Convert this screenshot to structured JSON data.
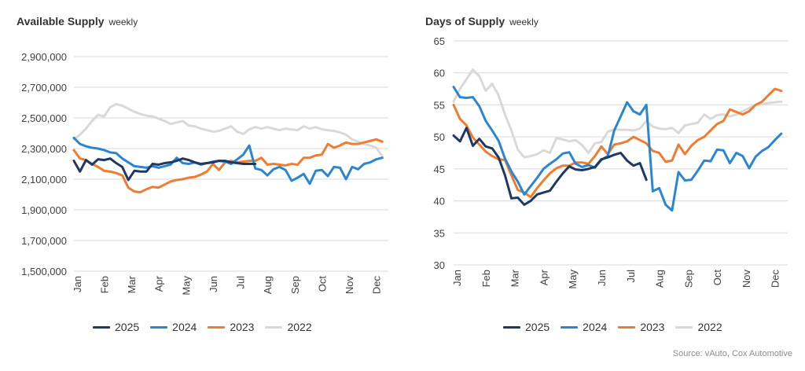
{
  "source": "Source: vAuto, Cox Automotive",
  "chart_data": [
    {
      "type": "line",
      "title": "Available Supply",
      "subtitle": "weekly",
      "ylim": [
        1500000,
        2900000
      ],
      "yticks": [
        1500000,
        1700000,
        1900000,
        2100000,
        2300000,
        2500000,
        2700000,
        2900000
      ],
      "ytick_labels": [
        "1,500,000",
        "1,700,000",
        "1,900,000",
        "2,100,000",
        "2,300,000",
        "2,500,000",
        "2,700,000",
        "2,900,000"
      ],
      "xlim": [
        0,
        52
      ],
      "x_tick_labels": [
        "Jan",
        "Feb",
        "Mar",
        "Apr",
        "May",
        "Jun",
        "Jul",
        "Aug",
        "Sep",
        "Oct",
        "Nov",
        "Dec"
      ],
      "x_label_weeks": [
        0.5,
        5,
        9.5,
        14,
        18.5,
        23,
        27.5,
        32,
        36.5,
        41,
        45.5,
        50
      ],
      "grid": true,
      "series": [
        {
          "name": "2025",
          "color": "#1f3864",
          "values": [
            2220000,
            2150000,
            2225000,
            2195000,
            2230000,
            2225000,
            2235000,
            2205000,
            2180000,
            2095000,
            2155000,
            2150000,
            2150000,
            2200000,
            2195000,
            2205000,
            2210000,
            2220000,
            2235000,
            2225000,
            2210000,
            2200000,
            2205000,
            2210000,
            2220000,
            2220000,
            2210000,
            2205000,
            2200000,
            2200000,
            2200000
          ]
        },
        {
          "name": "2024",
          "color": "#2b86d1",
          "values": [
            2370000,
            2330000,
            2315000,
            2305000,
            2300000,
            2290000,
            2275000,
            2270000,
            2235000,
            2210000,
            2185000,
            2180000,
            2175000,
            2185000,
            2175000,
            2185000,
            2195000,
            2240000,
            2205000,
            2200000,
            2210000,
            2195000,
            2205000,
            2215000,
            2220000,
            2215000,
            2200000,
            2230000,
            2260000,
            2320000,
            2170000,
            2160000,
            2125000,
            2165000,
            2180000,
            2160000,
            2090000,
            2110000,
            2135000,
            2070000,
            2155000,
            2160000,
            2120000,
            2180000,
            2175000,
            2100000,
            2180000,
            2165000,
            2200000,
            2210000,
            2230000,
            2240000
          ]
        },
        {
          "name": "2023",
          "color": "#ee7d31",
          "values": [
            2290000,
            2235000,
            2225000,
            2200000,
            2180000,
            2155000,
            2150000,
            2140000,
            2125000,
            2045000,
            2020000,
            2015000,
            2035000,
            2050000,
            2045000,
            2065000,
            2085000,
            2095000,
            2100000,
            2110000,
            2115000,
            2130000,
            2150000,
            2200000,
            2160000,
            2210000,
            2220000,
            2210000,
            2215000,
            2220000,
            2220000,
            2240000,
            2195000,
            2200000,
            2195000,
            2190000,
            2200000,
            2195000,
            2240000,
            2240000,
            2255000,
            2260000,
            2330000,
            2305000,
            2320000,
            2340000,
            2330000,
            2330000,
            2340000,
            2350000,
            2360000,
            2345000
          ]
        },
        {
          "name": "2022",
          "color": "#d9d9d9",
          "values": [
            2360000,
            2390000,
            2430000,
            2480000,
            2520000,
            2510000,
            2570000,
            2590000,
            2580000,
            2560000,
            2540000,
            2525000,
            2515000,
            2510000,
            2495000,
            2480000,
            2460000,
            2470000,
            2480000,
            2450000,
            2445000,
            2430000,
            2420000,
            2410000,
            2415000,
            2430000,
            2445000,
            2410000,
            2395000,
            2425000,
            2440000,
            2430000,
            2440000,
            2430000,
            2420000,
            2430000,
            2425000,
            2420000,
            2445000,
            2430000,
            2440000,
            2425000,
            2420000,
            2415000,
            2405000,
            2390000,
            2360000,
            2345000,
            2330000,
            2320000,
            2305000,
            2250000
          ]
        }
      ]
    },
    {
      "type": "line",
      "title": "Days of Supply",
      "subtitle": "weekly",
      "ylim": [
        30,
        65
      ],
      "yticks": [
        30,
        35,
        40,
        45,
        50,
        55,
        60,
        65
      ],
      "ytick_labels": [
        "30",
        "35",
        "40",
        "45",
        "50",
        "55",
        "60",
        "65"
      ],
      "xlim": [
        0,
        52
      ],
      "x_tick_labels": [
        "Jan",
        "Feb",
        "Mar",
        "Apr",
        "May",
        "Jun",
        "Jul",
        "Aug",
        "Sep",
        "Oct",
        "Nov",
        "Dec"
      ],
      "x_label_weeks": [
        0.5,
        5,
        9.5,
        14,
        18.5,
        23,
        27.5,
        32,
        36.5,
        41,
        45.5,
        50
      ],
      "grid": true,
      "series": [
        {
          "name": "2025",
          "color": "#1f3864",
          "values": [
            50.2,
            49.3,
            51.4,
            48.6,
            49.7,
            48.5,
            48.2,
            46.8,
            44.0,
            40.4,
            40.5,
            39.4,
            40.0,
            41.0,
            41.3,
            41.6,
            43.0,
            44.3,
            45.4,
            44.9,
            44.8,
            45.0,
            45.3,
            46.5,
            46.8,
            47.2,
            47.5,
            46.3,
            45.5,
            45.9,
            43.3
          ]
        },
        {
          "name": "2024",
          "color": "#2b86d1",
          "values": [
            57.8,
            56.2,
            56.1,
            56.2,
            54.8,
            52.5,
            51.0,
            49.4,
            46.6,
            44.6,
            43.0,
            41.0,
            42.3,
            43.6,
            45.0,
            45.8,
            46.5,
            47.4,
            47.6,
            45.8,
            45.3,
            45.6,
            45.2,
            46.4,
            47.0,
            51.0,
            53.2,
            55.4,
            54.0,
            53.5,
            55.0,
            41.5,
            42.0,
            39.4,
            38.5,
            44.5,
            43.2,
            43.3,
            44.7,
            46.3,
            46.2,
            48.0,
            47.9,
            45.9,
            47.5,
            47.0,
            45.1,
            46.9,
            47.8,
            48.4,
            49.5,
            50.5
          ]
        },
        {
          "name": "2023",
          "color": "#ee7d31",
          "values": [
            55.0,
            52.8,
            51.8,
            49.9,
            48.8,
            47.7,
            47.0,
            46.5,
            46.4,
            44.0,
            41.7,
            41.3,
            40.6,
            42.0,
            43.2,
            44.3,
            45.1,
            45.5,
            45.5,
            46.0,
            46.0,
            45.8,
            47.0,
            48.5,
            47.3,
            48.8,
            49.0,
            49.3,
            50.0,
            49.5,
            49.0,
            47.8,
            47.5,
            46.1,
            46.3,
            48.8,
            47.3,
            48.6,
            49.5,
            50.0,
            51.0,
            52.0,
            52.5,
            54.3,
            53.9,
            53.5,
            54.0,
            55.0,
            55.5,
            56.5,
            57.5,
            57.2
          ]
        },
        {
          "name": "2022",
          "color": "#d9d9d9",
          "values": [
            55.5,
            57.5,
            59.0,
            60.5,
            59.5,
            57.2,
            58.3,
            56.5,
            53.5,
            51.0,
            48.0,
            46.8,
            47.0,
            47.3,
            47.9,
            47.5,
            49.8,
            49.6,
            49.3,
            49.5,
            48.7,
            47.5,
            49.0,
            49.2,
            50.8,
            51.2,
            51.1,
            51.1,
            51.0,
            51.3,
            52.5,
            51.6,
            51.3,
            51.2,
            51.4,
            50.6,
            51.8,
            52.0,
            52.2,
            53.5,
            52.8,
            53.4,
            53.5,
            53.2,
            53.5,
            54.0,
            54.5,
            55.0,
            55.1,
            55.3,
            55.4,
            55.5
          ]
        }
      ]
    }
  ]
}
